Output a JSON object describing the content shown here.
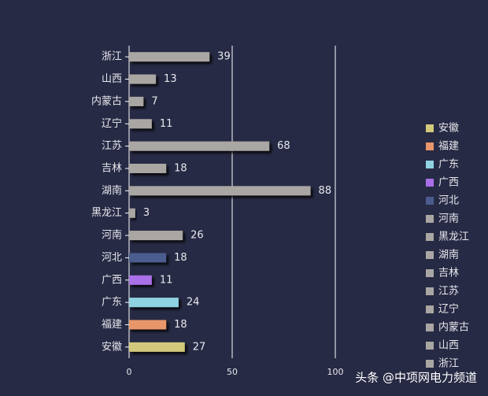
{
  "chart_data": {
    "type": "bar",
    "orientation": "horizontal",
    "categories": [
      "安徽",
      "福建",
      "广东",
      "广西",
      "河北",
      "河南",
      "黑龙江",
      "湖南",
      "吉林",
      "江苏",
      "辽宁",
      "内蒙古",
      "山西",
      "浙江"
    ],
    "values": [
      27,
      18,
      24,
      11,
      18,
      26,
      3,
      88,
      18,
      68,
      11,
      7,
      13,
      39
    ],
    "colors": [
      "#d3c97b",
      "#e8966b",
      "#8fd3e2",
      "#a96fe8",
      "#4b5b8f",
      "#aaa6a3",
      "#aaa6a3",
      "#aaa6a3",
      "#aaa6a3",
      "#aaa6a3",
      "#aaa6a3",
      "#aaa6a3",
      "#aaa6a3",
      "#aaa6a3"
    ],
    "xlim": [
      0,
      100
    ],
    "xticks": [
      0,
      50,
      100
    ],
    "grid": true,
    "legend": "right"
  },
  "watermark": "头条 @中项网电力频道"
}
